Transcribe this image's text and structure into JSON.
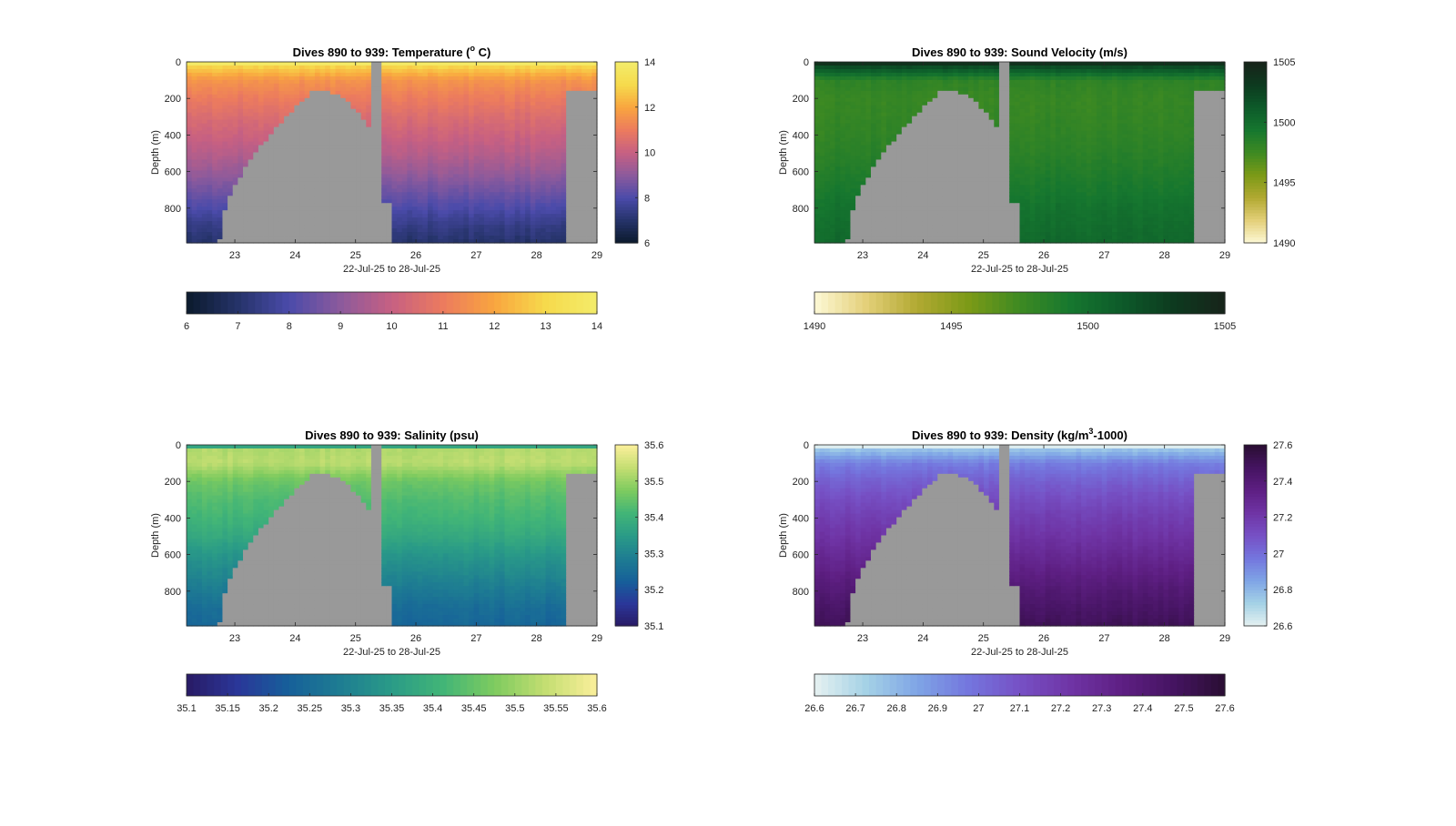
{
  "figure": {
    "background": "#ffffff",
    "land_color": "#999999",
    "panels": [
      {
        "id": "temperature",
        "title_main": "Dives 890 to 939: Temperature (",
        "title_sup": "o",
        "title_tail": " C)",
        "ylabel": "Depth (m)",
        "xlabel": "22-Jul-25 to 28-Jul-25",
        "x_ticks": [
          "23",
          "24",
          "25",
          "26",
          "27",
          "28",
          "29"
        ],
        "y_ticks": [
          "0",
          "200",
          "400",
          "600",
          "800"
        ],
        "colorbar_v_ticks": [
          "14",
          "12",
          "10",
          "8",
          "6"
        ],
        "colorbar_h_ticks": [
          "6",
          "7",
          "8",
          "9",
          "10",
          "11",
          "12",
          "13",
          "14"
        ],
        "colormap": [
          "#0b1a2c",
          "#253369",
          "#4b4baa",
          "#8c5a9c",
          "#c76082",
          "#ec7b5e",
          "#f9a53f",
          "#f6da4c",
          "#f3ec6a"
        ]
      },
      {
        "id": "sound_velocity",
        "title_main": "Dives 890 to 939: Sound Velocity (m/s)",
        "title_sup": "",
        "title_tail": "",
        "ylabel": "Depth (m)",
        "xlabel": "22-Jul-25 to 28-Jul-25",
        "x_ticks": [
          "23",
          "24",
          "25",
          "26",
          "27",
          "28",
          "29"
        ],
        "y_ticks": [
          "0",
          "200",
          "400",
          "600",
          "800"
        ],
        "colorbar_v_ticks": [
          "1505",
          "1500",
          "1495",
          "1490"
        ],
        "colorbar_h_ticks": [
          "1490",
          "1495",
          "1500",
          "1505"
        ],
        "colormap": [
          "#fdf9d6",
          "#e4d07a",
          "#b2a932",
          "#7c9a17",
          "#3e8a22",
          "#16772f",
          "#0d5a2a",
          "#0d3a1f",
          "#17231a"
        ]
      },
      {
        "id": "salinity",
        "title_main": "Dives 890 to 939: Salinity (psu)",
        "title_sup": "",
        "title_tail": "",
        "ylabel": "Depth (m)",
        "xlabel": "22-Jul-25 to 28-Jul-25",
        "x_ticks": [
          "23",
          "24",
          "25",
          "26",
          "27",
          "28",
          "29"
        ],
        "y_ticks": [
          "0",
          "200",
          "400",
          "600",
          "800"
        ],
        "colorbar_v_ticks": [
          "35.6",
          "35.5",
          "35.4",
          "35.3",
          "35.2",
          "35.1"
        ],
        "colorbar_h_ticks": [
          "35.1",
          "35.15",
          "35.2",
          "35.25",
          "35.3",
          "35.35",
          "35.4",
          "35.45",
          "35.5",
          "35.55",
          "35.6"
        ],
        "colormap": [
          "#291a64",
          "#2a3799",
          "#16609a",
          "#1e7d92",
          "#2a9b87",
          "#42b577",
          "#7ecb5f",
          "#c4de72",
          "#fbef9b"
        ]
      },
      {
        "id": "density",
        "title_main": "Dives 890 to 939: Density (kg/m",
        "title_sup": "3",
        "title_tail": "-1000)",
        "ylabel": "Depth (m)",
        "xlabel": "22-Jul-25 to 28-Jul-25",
        "x_ticks": [
          "23",
          "24",
          "25",
          "26",
          "27",
          "28",
          "29"
        ],
        "y_ticks": [
          "0",
          "200",
          "400",
          "600",
          "800"
        ],
        "colorbar_v_ticks": [
          "27.6",
          "27.4",
          "27.2",
          "27",
          "26.8",
          "26.6"
        ],
        "colorbar_h_ticks": [
          "26.6",
          "26.7",
          "26.8",
          "26.9",
          "27",
          "27.1",
          "27.2",
          "27.3",
          "27.4",
          "27.5",
          "27.6"
        ],
        "colormap": [
          "#e6f1f1",
          "#a5d2e6",
          "#7fa5e6",
          "#7476de",
          "#7651c5",
          "#6f34a5",
          "#5e1f83",
          "#451461",
          "#2a0e33"
        ]
      }
    ]
  },
  "chart_data": [
    {
      "type": "heatmap",
      "title": "Dives 890 to 939: Temperature (° C)",
      "xlabel": "22-Jul-25 to 28-Jul-25",
      "ylabel": "Depth (m)",
      "xlim": [
        22.2,
        29
      ],
      "ylim": [
        990,
        0
      ],
      "y_reversed": true,
      "clim": [
        6,
        14
      ],
      "colorbar_label_ticks": [
        6,
        7,
        8,
        9,
        10,
        11,
        12,
        13,
        14
      ],
      "profile_depth": [
        0,
        20,
        100,
        200,
        300,
        400,
        500,
        600,
        700,
        800,
        900,
        990
      ],
      "profile_values": [
        14,
        13.0,
        11.6,
        11.0,
        10.5,
        10.1,
        9.7,
        9.2,
        8.6,
        8.0,
        7.4,
        7.0
      ],
      "no_data_regions": [
        {
          "shape": "seamount",
          "x_from": 22.75,
          "x_to": 25.35,
          "peak_x": 24.3,
          "peak_depth": 160
        },
        {
          "shape": "gap",
          "x_from": 25.3,
          "x_to": 25.45
        },
        {
          "shape": "bottom",
          "x_from": 25.45,
          "x_to": 25.6,
          "depth_from": 780
        },
        {
          "shape": "wall",
          "x_from": 28.45,
          "x_to": 29.0,
          "depth_from": 155
        }
      ]
    },
    {
      "type": "heatmap",
      "title": "Dives 890 to 939: Sound Velocity (m/s)",
      "xlabel": "22-Jul-25 to 28-Jul-25",
      "ylabel": "Depth (m)",
      "xlim": [
        22.2,
        29
      ],
      "ylim": [
        990,
        0
      ],
      "y_reversed": true,
      "clim": [
        1490,
        1505
      ],
      "colorbar_label_ticks": [
        1490,
        1495,
        1500,
        1505
      ],
      "profile_depth": [
        0,
        20,
        100,
        200,
        300,
        400,
        500,
        600,
        700,
        800,
        900,
        990
      ],
      "profile_values": [
        1505,
        1502.5,
        1498.2,
        1497.8,
        1497.9,
        1498.1,
        1498.4,
        1498.8,
        1499.2,
        1499.7,
        1500.0,
        1500.3
      ],
      "no_data_regions": [
        {
          "shape": "seamount",
          "x_from": 22.75,
          "x_to": 25.35,
          "peak_x": 24.3,
          "peak_depth": 160
        },
        {
          "shape": "gap",
          "x_from": 25.3,
          "x_to": 25.45
        },
        {
          "shape": "bottom",
          "x_from": 25.45,
          "x_to": 25.6,
          "depth_from": 780
        },
        {
          "shape": "wall",
          "x_from": 28.45,
          "x_to": 29.0,
          "depth_from": 155
        }
      ]
    },
    {
      "type": "heatmap",
      "title": "Dives 890 to 939: Salinity (psu)",
      "xlabel": "22-Jul-25 to 28-Jul-25",
      "ylabel": "Depth (m)",
      "xlim": [
        22.2,
        29
      ],
      "ylim": [
        990,
        0
      ],
      "y_reversed": true,
      "clim": [
        35.1,
        35.6
      ],
      "colorbar_label_ticks": [
        35.1,
        35.15,
        35.2,
        35.25,
        35.3,
        35.35,
        35.4,
        35.45,
        35.5,
        35.55,
        35.6
      ],
      "profile_depth": [
        0,
        20,
        100,
        200,
        300,
        400,
        500,
        600,
        700,
        800,
        900,
        990
      ],
      "profile_values": [
        35.36,
        35.52,
        35.53,
        35.46,
        35.43,
        35.41,
        35.38,
        35.34,
        35.31,
        35.28,
        35.25,
        35.24
      ],
      "no_data_regions": [
        {
          "shape": "seamount",
          "x_from": 22.75,
          "x_to": 25.35,
          "peak_x": 24.3,
          "peak_depth": 160
        },
        {
          "shape": "gap",
          "x_from": 25.3,
          "x_to": 25.45
        },
        {
          "shape": "bottom",
          "x_from": 25.45,
          "x_to": 25.6,
          "depth_from": 780
        },
        {
          "shape": "wall",
          "x_from": 28.45,
          "x_to": 29.0,
          "depth_from": 155
        }
      ]
    },
    {
      "type": "heatmap",
      "title": "Dives 890 to 939: Density (kg/m³-1000)",
      "xlabel": "22-Jul-25 to 28-Jul-25",
      "ylabel": "Depth (m)",
      "xlim": [
        22.2,
        29
      ],
      "ylim": [
        990,
        0
      ],
      "y_reversed": true,
      "clim": [
        26.6,
        27.6
      ],
      "colorbar_label_ticks": [
        26.6,
        26.7,
        26.8,
        26.9,
        27,
        27.1,
        27.2,
        27.3,
        27.4,
        27.5,
        27.6
      ],
      "profile_depth": [
        0,
        20,
        100,
        200,
        300,
        400,
        500,
        600,
        700,
        800,
        900,
        990
      ],
      "profile_values": [
        26.6,
        26.75,
        26.95,
        27.05,
        27.12,
        27.18,
        27.23,
        27.29,
        27.35,
        27.41,
        27.46,
        27.5
      ],
      "no_data_regions": [
        {
          "shape": "seamount",
          "x_from": 22.75,
          "x_to": 25.35,
          "peak_x": 24.3,
          "peak_depth": 160
        },
        {
          "shape": "gap",
          "x_from": 25.3,
          "x_to": 25.45
        },
        {
          "shape": "bottom",
          "x_from": 25.45,
          "x_to": 25.6,
          "depth_from": 780
        },
        {
          "shape": "wall",
          "x_from": 28.45,
          "x_to": 29.0,
          "depth_from": 155
        }
      ]
    }
  ]
}
